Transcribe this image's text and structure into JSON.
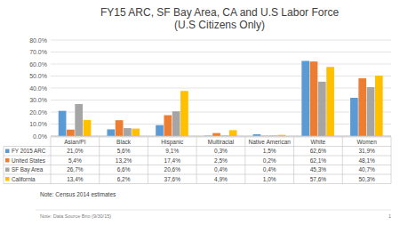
{
  "chart_data": {
    "type": "bar",
    "title": "FY15 ARC, SF Bay Area, CA and U.S Labor Force",
    "subtitle": "(U.S Citizens Only)",
    "categories": [
      "Asian/PI",
      "Black",
      "Hispanic",
      "Multiracial",
      "Native American",
      "White",
      "Women"
    ],
    "series": [
      {
        "name": "FY 2015 ARC",
        "color": "#5b9bd5",
        "values": [
          21.0,
          5.6,
          9.1,
          0.3,
          1.5,
          62.6,
          31.9
        ],
        "value_labels": [
          "21,0%",
          "5,6%",
          "9,1%",
          "0,3%",
          "1,5%",
          "62,6%",
          "31,9%"
        ]
      },
      {
        "name": "United States",
        "color": "#ed7d31",
        "values": [
          5.4,
          13.2,
          17.4,
          2.5,
          0.2,
          62.1,
          48.1
        ],
        "value_labels": [
          "5,4%",
          "13,2%",
          "17,4%",
          "2,5%",
          "0,2%",
          "62,1%",
          "48,1%"
        ]
      },
      {
        "name": "SF Bay Area",
        "color": "#a5a5a5",
        "values": [
          26.7,
          6.6,
          20.6,
          0.4,
          0.4,
          45.3,
          40.7
        ],
        "value_labels": [
          "26,7%",
          "6,6%",
          "20,6%",
          "0,4%",
          "0,4%",
          "45,3%",
          "40,7%"
        ]
      },
      {
        "name": "California",
        "color": "#ffc000",
        "values": [
          13.4,
          6.2,
          37.6,
          4.9,
          1.0,
          57.6,
          50.3
        ],
        "value_labels": [
          "13,4%",
          "6,2%",
          "37,6%",
          "4,9%",
          "1,0%",
          "57,6%",
          "50,3%"
        ]
      }
    ],
    "ylim": [
      0,
      80
    ],
    "yticks": [
      {
        "value": 0,
        "label": "0.0%"
      },
      {
        "value": 10,
        "label": "10.0%"
      },
      {
        "value": 20,
        "label": "20.0%"
      },
      {
        "value": 30,
        "label": "30.0%"
      },
      {
        "value": 40,
        "label": "40.0%"
      },
      {
        "value": 50,
        "label": "50.0%"
      },
      {
        "value": 60,
        "label": "60.0%"
      },
      {
        "value": 70,
        "label": "70.0%"
      },
      {
        "value": 80,
        "label": "80.0%"
      }
    ],
    "grid": true,
    "data_labels": true,
    "annotations": [
      "Note: Census 2014 estimates"
    ],
    "footer": "Note: Data Source Brio (9/30/15)",
    "page_number": 1
  }
}
